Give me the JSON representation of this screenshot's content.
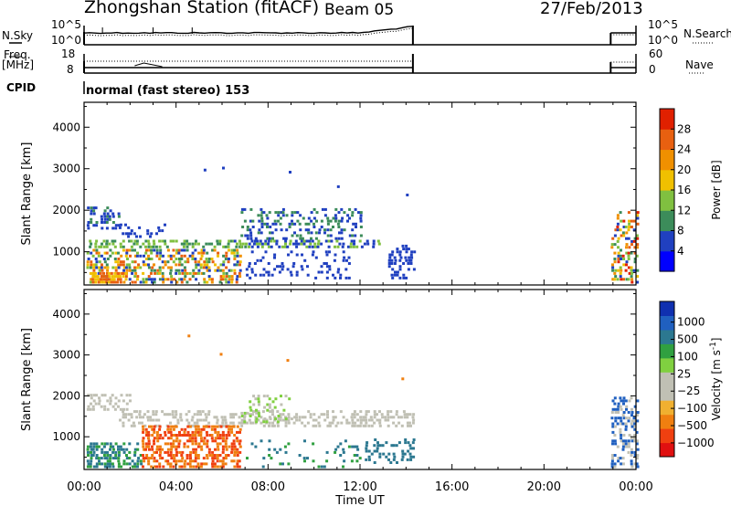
{
  "header": {
    "station": "Zhongshan Station (fitACF)",
    "beam": "Beam 05",
    "date": "27/Feb/2013"
  },
  "nsky_panel": {
    "left_label": "N.Sky",
    "left_ticks": [
      "10^5",
      "10^0"
    ],
    "right_ticks": [
      "10^5",
      "10^0"
    ],
    "right_label": "N.Search"
  },
  "freq_panel": {
    "left_label_1": "Freq.",
    "left_label_2": "[MHz]",
    "left_ticks": [
      "18",
      "8"
    ],
    "right_ticks": [
      "60",
      "0"
    ],
    "right_label": "Nave"
  },
  "cpid": {
    "label": "CPID",
    "value": "normal (fast stereo) 153"
  },
  "colors": {
    "power": [
      "#0000ff",
      "#2040c0",
      "#3c8c5a",
      "#80c040",
      "#f0c000",
      "#f09000",
      "#e86010",
      "#e02000"
    ],
    "velocity": [
      "#e01010",
      "#f04010",
      "#f07f10",
      "#f0b030",
      "#c0c0b4",
      "#c0c0b4",
      "#80d040",
      "#30a040",
      "#2c7890",
      "#2060c0",
      "#1030b0"
    ]
  },
  "chart_data": [
    {
      "type": "heatmap",
      "title": "Power",
      "xlabel": "Time UT",
      "ylabel": "Slant Range [km]",
      "xlim": [
        "00:00",
        "24:00"
      ],
      "ylim": [
        200,
        4600
      ],
      "x_ticks": [
        "00:00",
        "04:00",
        "08:00",
        "12:00",
        "16:00",
        "20:00",
        "00:00"
      ],
      "y_ticks": [
        1000,
        2000,
        3000,
        4000
      ],
      "colorbar": {
        "label": "Power [dB]",
        "ticks": [
          "4",
          "8",
          "12",
          "16",
          "20",
          "24",
          "28"
        ],
        "range": [
          0,
          32
        ]
      },
      "data_coverage_hours": [
        [
          0.0,
          14.3
        ],
        [
          22.9,
          24.0
        ]
      ]
    },
    {
      "type": "heatmap",
      "title": "Velocity",
      "xlabel": "Time UT",
      "ylabel": "Slant Range [km]",
      "xlim": [
        "00:00",
        "24:00"
      ],
      "ylim": [
        200,
        4600
      ],
      "x_ticks": [
        "00:00",
        "04:00",
        "08:00",
        "12:00",
        "16:00",
        "20:00",
        "00:00"
      ],
      "y_ticks": [
        1000,
        2000,
        3000,
        4000
      ],
      "colorbar": {
        "label": "Velocity [m s^-1]",
        "ticks": [
          "1000",
          "500",
          "100",
          "25",
          "−25",
          "−100",
          "−500",
          "−1000"
        ]
      },
      "data_coverage_hours": [
        [
          0.0,
          14.3
        ],
        [
          22.9,
          24.0
        ]
      ]
    }
  ]
}
